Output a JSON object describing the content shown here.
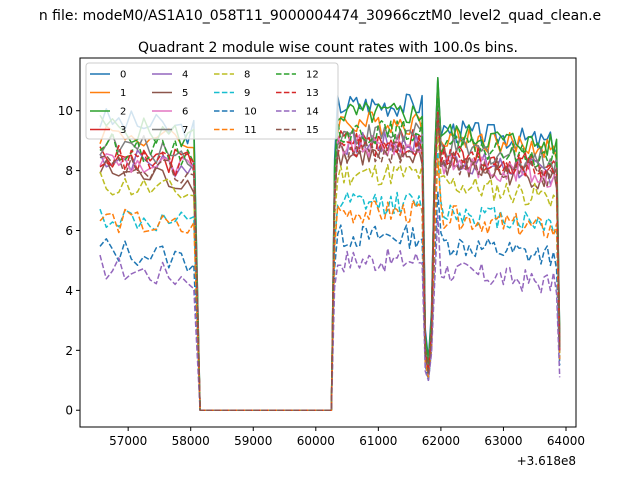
{
  "figure": {
    "suptitle": "n file: modeM0/AS1A10_058T11_9000004474_30966cztM0_level2_quad_clean.e",
    "title": "Quadrant 2 module wise count rates with 100.0s bins.",
    "offset_label": "+3.618e8"
  },
  "chart_data": {
    "type": "line",
    "title": "Quadrant 2 module wise count rates with 100.0s bins.",
    "xlabel": "",
    "ylabel": "",
    "x_offset": 361800000,
    "xlim": [
      56230,
      64160
    ],
    "ylim": [
      -0.56,
      11.76
    ],
    "xticks": [
      57000,
      58000,
      59000,
      60000,
      61000,
      62000,
      63000,
      64000
    ],
    "xtick_labels": [
      "57000",
      "58000",
      "59000",
      "60000",
      "61000",
      "62000",
      "63000",
      "64000"
    ],
    "yticks": [
      0,
      2,
      4,
      6,
      8,
      10
    ],
    "ytick_labels": [
      "0",
      "2",
      "4",
      "6",
      "8",
      "10"
    ],
    "grid": false,
    "legend_position": "top-left",
    "legend_columns": 4,
    "shape": {
      "seg1_x": [
        56550,
        58090
      ],
      "gap_x": [
        58150,
        60260
      ],
      "seg2_x": [
        60300,
        61700
      ],
      "dip_x": [
        61750,
        61800,
        61850
      ],
      "seg3_x": [
        61950,
        63850
      ],
      "drop_x": [
        63900
      ]
    },
    "series": [
      {
        "name": "0",
        "color": "#1f77b4",
        "dash": "solid",
        "base": 9.7,
        "seg2": 10.2,
        "seg3": 9.4,
        "dip": [
          2.7,
          1.7,
          3.3
        ],
        "peak": 11.1,
        "final": 2.5
      },
      {
        "name": "1",
        "color": "#ff7f0e",
        "dash": "solid",
        "base": 9.3,
        "seg2": 9.6,
        "seg3": 9.2,
        "dip": [
          2.3,
          1.5,
          2.9
        ],
        "peak": 10.7,
        "final": 2.3
      },
      {
        "name": "2",
        "color": "#2ca02c",
        "dash": "solid",
        "base": 9.5,
        "seg2": 9.9,
        "seg3": 9.3,
        "dip": [
          2.5,
          1.6,
          3.1
        ],
        "peak": 11.1,
        "final": 2.4
      },
      {
        "name": "3",
        "color": "#d62728",
        "dash": "solid",
        "base": 8.6,
        "seg2": 9.0,
        "seg3": 8.6,
        "dip": [
          2.0,
          1.3,
          2.6
        ],
        "peak": 10.1,
        "final": 2.1
      },
      {
        "name": "4",
        "color": "#9467bd",
        "dash": "solid",
        "base": 8.5,
        "seg2": 8.9,
        "seg3": 8.4,
        "dip": [
          2.0,
          1.3,
          2.6
        ],
        "peak": 10.0,
        "final": 2.0
      },
      {
        "name": "5",
        "color": "#8c564b",
        "dash": "solid",
        "base": 8.0,
        "seg2": 8.5,
        "seg3": 8.2,
        "dip": [
          1.9,
          1.2,
          2.5
        ],
        "peak": 9.8,
        "final": 2.0
      },
      {
        "name": "6",
        "color": "#e377c2",
        "dash": "solid",
        "base": 8.4,
        "seg2": 8.8,
        "seg3": 8.3,
        "dip": [
          2.0,
          1.3,
          2.6
        ],
        "peak": 9.9,
        "final": 2.0
      },
      {
        "name": "7",
        "color": "#7f7f7f",
        "dash": "solid",
        "base": 8.9,
        "seg2": 9.2,
        "seg3": 8.8,
        "dip": [
          2.1,
          1.4,
          2.7
        ],
        "peak": 10.3,
        "final": 2.1
      },
      {
        "name": "8",
        "color": "#bcbd22",
        "dash": "dashed",
        "base": 7.6,
        "seg2": 7.9,
        "seg3": 7.6,
        "dip": [
          1.8,
          1.2,
          2.4
        ],
        "peak": 9.4,
        "final": 1.9
      },
      {
        "name": "9",
        "color": "#17becf",
        "dash": "dashed",
        "base": 6.5,
        "seg2": 6.9,
        "seg3": 6.7,
        "dip": [
          1.6,
          1.1,
          2.2
        ],
        "peak": 8.6,
        "final": 1.7
      },
      {
        "name": "10",
        "color": "#1f77b4",
        "dash": "dashed",
        "base": 5.4,
        "seg2": 5.8,
        "seg3": 5.6,
        "dip": [
          1.5,
          1.0,
          2.0
        ],
        "peak": 7.3,
        "final": 1.5
      },
      {
        "name": "11",
        "color": "#ff7f0e",
        "dash": "dashed",
        "base": 6.4,
        "seg2": 6.6,
        "seg3": 6.5,
        "dip": [
          1.6,
          1.1,
          2.1
        ],
        "peak": 8.4,
        "final": 1.7
      },
      {
        "name": "12",
        "color": "#2ca02c",
        "dash": "dashed",
        "base": 8.9,
        "seg2": 9.3,
        "seg3": 8.9,
        "dip": [
          2.1,
          1.4,
          2.7
        ],
        "peak": 10.4,
        "final": 2.1
      },
      {
        "name": "13",
        "color": "#d62728",
        "dash": "dashed",
        "base": 8.5,
        "seg2": 8.8,
        "seg3": 8.5,
        "dip": [
          2.0,
          1.3,
          2.6
        ],
        "peak": 10.0,
        "final": 2.0
      },
      {
        "name": "14",
        "color": "#9467bd",
        "dash": "dashed",
        "base": 4.8,
        "seg2": 5.0,
        "seg3": 4.7,
        "dip": [
          1.3,
          1.0,
          1.9
        ],
        "peak": 6.5,
        "final": 1.1
      },
      {
        "name": "15",
        "color": "#8c564b",
        "dash": "dashed",
        "base": 8.2,
        "seg2": 8.6,
        "seg3": 8.3,
        "dip": [
          1.9,
          1.2,
          2.5
        ],
        "peak": 9.9,
        "final": 2.0
      }
    ]
  }
}
